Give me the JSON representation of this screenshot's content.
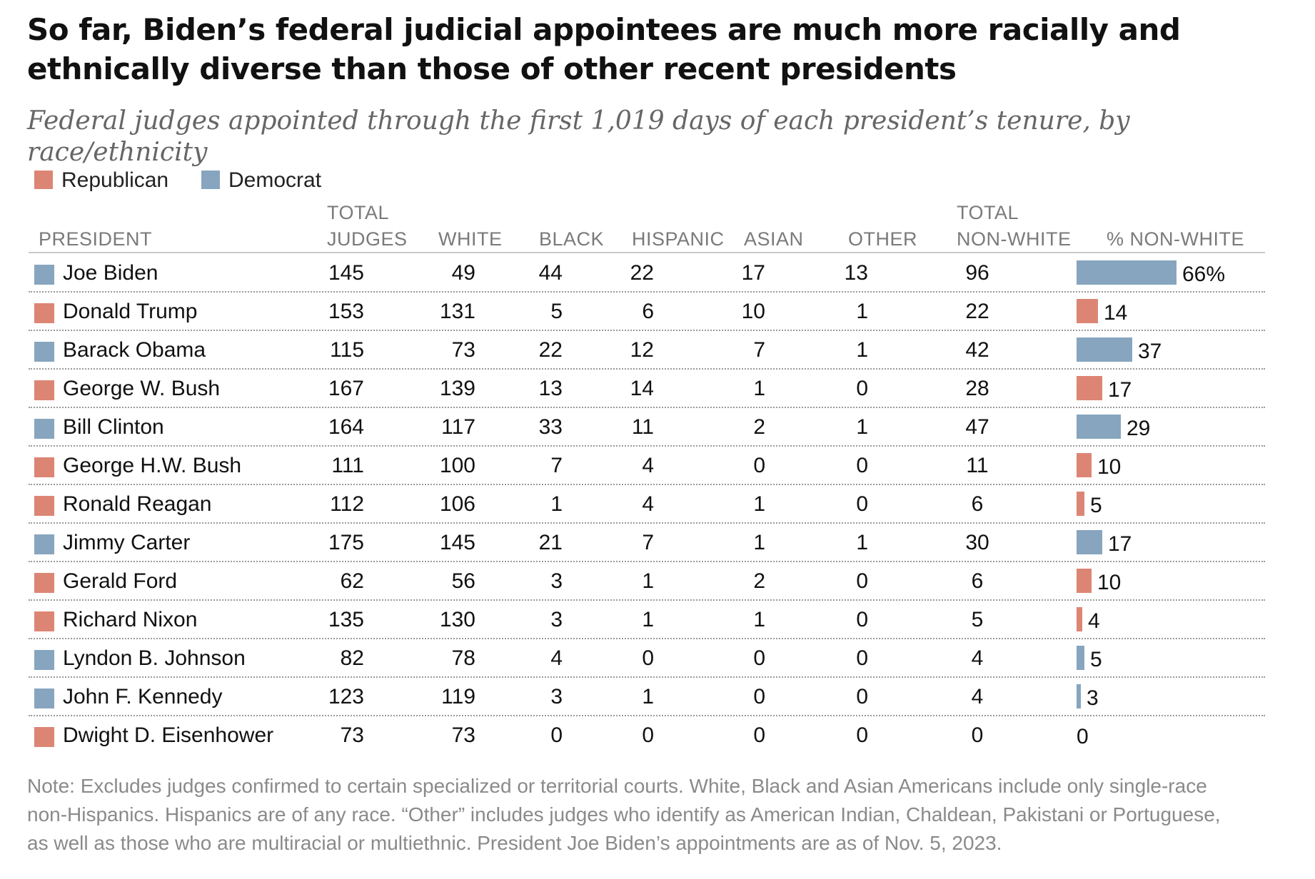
{
  "title": "So far, Biden’s federal judicial appointees are much more racially and ethnically diverse than those of other recent presidents",
  "subtitle": "Federal judges appointed through the first 1,019 days of each president’s tenure, by race/ethnicity",
  "legend": [
    {
      "label": "Republican",
      "color": "#dd8574"
    },
    {
      "label": "Democrat",
      "color": "#87a5be"
    }
  ],
  "headers": {
    "president": "PRESIDENT",
    "total_judges_top": "TOTAL",
    "total_judges_bottom": "JUDGES",
    "white": "WHITE",
    "black": "BLACK",
    "hispanic": "HISPANIC",
    "asian": "ASIAN",
    "other": "OTHER",
    "total_nonwhite_top": "TOTAL",
    "total_nonwhite_bottom": "NON-WHITE",
    "pct_nonwhite": "% NON-WHITE"
  },
  "note": "Note: Excludes judges confirmed to certain specialized or territorial courts. White, Black and Asian Americans include only single-race non-Hispanics. Hispanics are of any race. “Other” includes judges who identify as American Indian, Chaldean, Pakistani or Portuguese, as well as those who are multiracial or multiethnic. President Joe Biden’s appointments are as of Nov. 5, 2023.",
  "chart_data": {
    "type": "table",
    "title": "So far, Biden’s federal judicial appointees are much more racially and ethnically diverse than those of other recent presidents",
    "subtitle": "Federal judges appointed through the first 1,019 days of each president’s tenure, by race/ethnicity",
    "columns": [
      "PRESIDENT",
      "TOTAL JUDGES",
      "WHITE",
      "BLACK",
      "HISPANIC",
      "ASIAN",
      "OTHER",
      "TOTAL NON-WHITE",
      "% NON-WHITE"
    ],
    "bar_column": "% NON-WHITE",
    "bar_max": 66,
    "rows": [
      {
        "president": "Joe Biden",
        "party": "Democrat",
        "total": "145",
        "white": "49",
        "black": "44",
        "hispanic": "22",
        "asian": "17",
        "other": "13",
        "nonwhite": "96",
        "pct": 66,
        "pct_label": "66%"
      },
      {
        "president": "Donald Trump",
        "party": "Republican",
        "total": "153",
        "white": "131",
        "black": "5",
        "hispanic": "6",
        "asian": "10",
        "other": "1",
        "nonwhite": "22",
        "pct": 14,
        "pct_label": "14"
      },
      {
        "president": "Barack Obama",
        "party": "Democrat",
        "total": "115",
        "white": "73",
        "black": "22",
        "hispanic": "12",
        "asian": "7",
        "other": "1",
        "nonwhite": "42",
        "pct": 37,
        "pct_label": "37"
      },
      {
        "president": "George W. Bush",
        "party": "Republican",
        "total": "167",
        "white": "139",
        "black": "13",
        "hispanic": "14",
        "asian": "1",
        "other": "0",
        "nonwhite": "28",
        "pct": 17,
        "pct_label": "17"
      },
      {
        "president": "Bill Clinton",
        "party": "Democrat",
        "total": "164",
        "white": "117",
        "black": "33",
        "hispanic": "11",
        "asian": "2",
        "other": "1",
        "nonwhite": "47",
        "pct": 29,
        "pct_label": "29"
      },
      {
        "president": "George H.W. Bush",
        "party": "Republican",
        "total": "111",
        "white": "100",
        "black": "7",
        "hispanic": "4",
        "asian": "0",
        "other": "0",
        "nonwhite": "11",
        "pct": 10,
        "pct_label": "10"
      },
      {
        "president": "Ronald Reagan",
        "party": "Republican",
        "total": "112",
        "white": "106",
        "black": "1",
        "hispanic": "4",
        "asian": "1",
        "other": "0",
        "nonwhite": "6",
        "pct": 5,
        "pct_label": "5"
      },
      {
        "president": "Jimmy Carter",
        "party": "Democrat",
        "total": "175",
        "white": "145",
        "black": "21",
        "hispanic": "7",
        "asian": "1",
        "other": "1",
        "nonwhite": "30",
        "pct": 17,
        "pct_label": "17"
      },
      {
        "president": "Gerald Ford",
        "party": "Republican",
        "total": "62",
        "white": "56",
        "black": "3",
        "hispanic": "1",
        "asian": "2",
        "other": "0",
        "nonwhite": "6",
        "pct": 10,
        "pct_label": "10"
      },
      {
        "president": "Richard Nixon",
        "party": "Republican",
        "total": "135",
        "white": "130",
        "black": "3",
        "hispanic": "1",
        "asian": "1",
        "other": "0",
        "nonwhite": "5",
        "pct": 4,
        "pct_label": "4"
      },
      {
        "president": "Lyndon B. Johnson",
        "party": "Democrat",
        "total": "82",
        "white": "78",
        "black": "4",
        "hispanic": "0",
        "asian": "0",
        "other": "0",
        "nonwhite": "4",
        "pct": 5,
        "pct_label": "5"
      },
      {
        "president": "John F. Kennedy",
        "party": "Democrat",
        "total": "123",
        "white": "119",
        "black": "3",
        "hispanic": "1",
        "asian": "0",
        "other": "0",
        "nonwhite": "4",
        "pct": 3,
        "pct_label": "3"
      },
      {
        "president": "Dwight D. Eisenhower",
        "party": "Republican",
        "total": "73",
        "white": "73",
        "black": "0",
        "hispanic": "0",
        "asian": "0",
        "other": "0",
        "nonwhite": "0",
        "pct": 0,
        "pct_label": "0"
      }
    ]
  }
}
